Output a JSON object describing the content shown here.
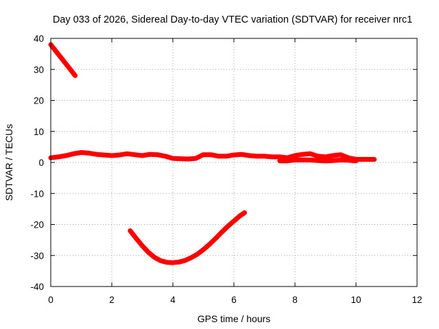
{
  "chart_data": {
    "type": "line",
    "title": "Day 033 of 2026, Sidereal Day-to-day VTEC variation (SDTVAR) for receiver nrc1",
    "xlabel": "GPS time / hours",
    "ylabel": "SDTVAR / TECUs",
    "xlim": [
      0,
      12
    ],
    "ylim": [
      -40,
      40
    ],
    "x_ticks": [
      "0",
      "2",
      "4",
      "6",
      "8",
      "10",
      "12"
    ],
    "y_ticks": [
      "40",
      "30",
      "20",
      "10",
      "0",
      "-10",
      "-20",
      "-30",
      "-40"
    ],
    "grid": true,
    "legend": "none",
    "colors": {
      "series": "#ff0000"
    },
    "series": [
      {
        "segments": [
          {
            "x": [
              0.0,
              0.2,
              0.4,
              0.6,
              0.8
            ],
            "y": [
              38.0,
              35.5,
              33.0,
              30.5,
              28.0
            ]
          },
          {
            "x": [
              0.0,
              0.25,
              0.5,
              0.75,
              1.0,
              1.25,
              1.5,
              1.75,
              2.0,
              2.25,
              2.5,
              2.75,
              3.0,
              3.25,
              3.5,
              3.75,
              4.0,
              4.25,
              4.5,
              4.75,
              5.0,
              5.25,
              5.5,
              5.75,
              6.0,
              6.25,
              6.5,
              6.75,
              7.0,
              7.25,
              7.5,
              7.75,
              8.0,
              8.25,
              8.5,
              8.75,
              9.0,
              9.25,
              9.5,
              9.75,
              10.0,
              10.25,
              10.6
            ],
            "y": [
              1.5,
              1.8,
              2.2,
              2.8,
              3.2,
              3.0,
              2.6,
              2.4,
              2.2,
              2.4,
              2.8,
              2.5,
              2.2,
              2.6,
              2.5,
              2.0,
              1.3,
              1.2,
              1.1,
              1.3,
              2.5,
              2.5,
              2.0,
              2.0,
              2.4,
              2.6,
              2.2,
              2.0,
              2.0,
              1.8,
              1.8,
              1.5,
              2.2,
              2.6,
              2.8,
              2.0,
              1.8,
              2.2,
              2.5,
              1.5,
              1.0,
              1.0,
              1.0
            ]
          },
          {
            "x": [
              7.5,
              7.75,
              8.0,
              8.25,
              8.5,
              8.75,
              9.0,
              9.25,
              9.5,
              9.75,
              10.0
            ],
            "y": [
              0.5,
              0.5,
              0.8,
              0.8,
              0.8,
              0.6,
              0.5,
              0.6,
              0.8,
              0.7,
              0.5
            ]
          },
          {
            "x": [
              2.6,
              2.8,
              3.0,
              3.2,
              3.4,
              3.6,
              3.8,
              4.0,
              4.2,
              4.4,
              4.6,
              4.8,
              5.0,
              5.2,
              5.4,
              5.6,
              5.8,
              6.0,
              6.2,
              6.35
            ],
            "y": [
              -22.0,
              -24.5,
              -26.9,
              -29.0,
              -30.6,
              -31.7,
              -32.2,
              -32.3,
              -32.1,
              -31.6,
              -30.7,
              -29.6,
              -28.1,
              -26.4,
              -24.5,
              -22.5,
              -20.6,
              -18.9,
              -17.2,
              -16.2
            ]
          }
        ]
      }
    ]
  }
}
